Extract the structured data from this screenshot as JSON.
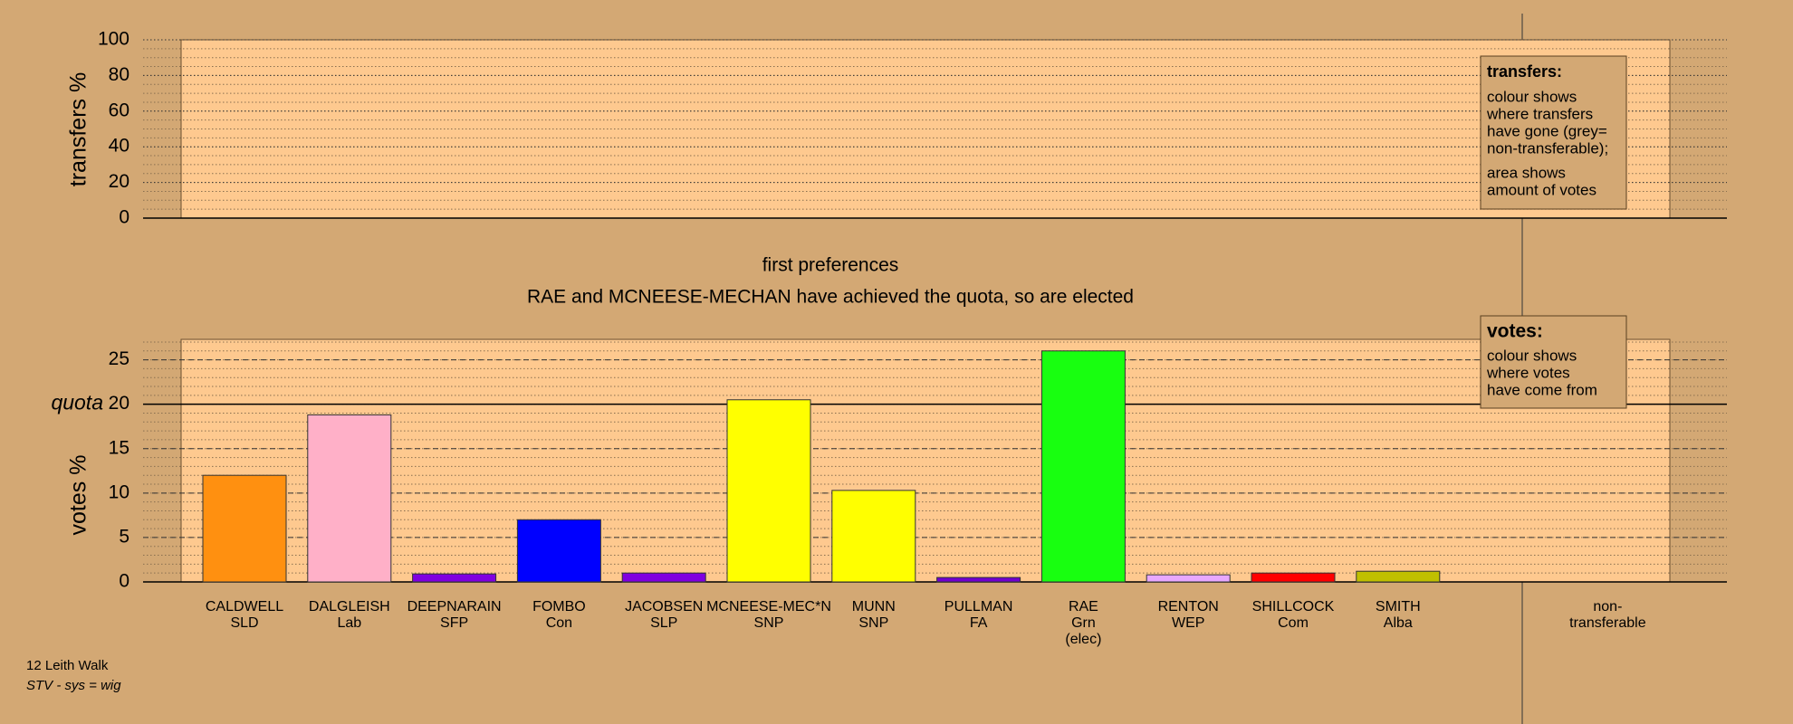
{
  "footer": [
    "12 Leith Walk",
    "STV - sys = wig"
  ],
  "chart_data": [
    {
      "type": "bar",
      "y_label": "transfers %",
      "ylim": [
        0,
        100
      ],
      "yticks": [
        0,
        20,
        40,
        60,
        80,
        100
      ],
      "grid": true,
      "minor_grid_step": 5,
      "note": {
        "title": "transfers:",
        "paragraphs": [
          [
            "colour shows",
            "where transfers",
            "have gone (grey=",
            "non-transferable);"
          ],
          [
            "area shows",
            "amount of votes"
          ]
        ]
      }
    },
    {
      "type": "bar",
      "title": "first preferences",
      "subtitle": "RAE and MCNEESE-MECHAN have achieved the quota, so are elected",
      "y_label": "votes %",
      "categories": [
        [
          "CALDWELL",
          "SLD"
        ],
        [
          "DALGLEISH",
          "Lab"
        ],
        [
          "DEEPNARAIN",
          "SFP"
        ],
        [
          "FOMBO",
          "Con"
        ],
        [
          "JACOBSEN",
          "SLP"
        ],
        [
          "MCNEESE-MEC*N",
          "SNP"
        ],
        [
          "MUNN",
          "SNP"
        ],
        [
          "PULLMAN",
          "FA"
        ],
        [
          "RAE",
          "Grn",
          "(elec)"
        ],
        [
          "RENTON",
          "WEP"
        ],
        [
          "SHILLCOCK",
          "Com"
        ],
        [
          "SMITH",
          "Alba"
        ]
      ],
      "values": [
        12.0,
        18.8,
        0.9,
        7.0,
        1.0,
        20.5,
        10.3,
        0.5,
        26.0,
        0.8,
        1.0,
        1.2
      ],
      "colors": [
        "#ff9010",
        "#ffb0c8",
        "#8000e0",
        "#0000ff",
        "#8000e0",
        "#ffff00",
        "#ffff00",
        "#7000d0",
        "#18ff10",
        "#e8a8ff",
        "#ff0000",
        "#c0c000"
      ],
      "ylim": [
        0,
        27.3
      ],
      "yticks": [
        0,
        5,
        10,
        15,
        20,
        25
      ],
      "grid": true,
      "minor_grid_step": 1,
      "quota": {
        "value": 20,
        "label": "quota"
      },
      "nontransferable_label": [
        "non-",
        "transferable"
      ],
      "note": {
        "title": "votes:",
        "paragraphs": [
          [
            "colour shows",
            "where votes",
            "have come from"
          ]
        ]
      }
    }
  ]
}
